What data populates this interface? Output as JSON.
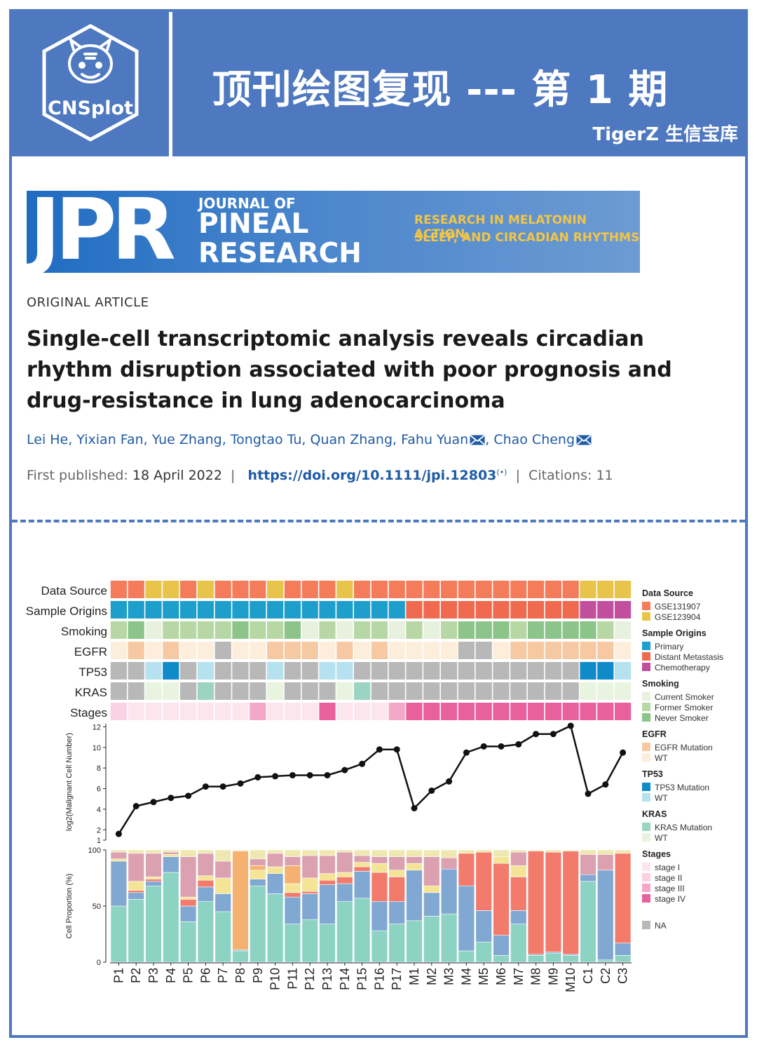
{
  "header": {
    "logo_label": "CNSplot",
    "title": "顶刊绘图复现 --- 第 1 期",
    "subtitle": "TigerZ 生信宝库"
  },
  "journal_banner": {
    "abbrev": "JPR",
    "journal_of": "JOURNAL OF",
    "pineal": "PINEAL",
    "research": "RESEARCH",
    "tagline1": "RESEARCH IN MELATONIN ACTION,",
    "tagline2": "SLEEP, AND CIRCADIAN RHYTHMS"
  },
  "article": {
    "type": "ORIGINAL ARTICLE",
    "title": "Single-cell transcriptomic analysis reveals circadian rhythm disruption associated with poor prognosis and drug-resistance in lung adenocarcinoma",
    "authors": "Lei He, Yixian Fan, Yue Zhang, Tongtao Tu, Quan Zhang, Fahu Yuan",
    "last_author": "Chao Cheng",
    "first_published_label": "First published:",
    "first_published_date": "18 April 2022",
    "doi": "https://doi.org/10.1111/jpi.12803",
    "citations_label": "Citations:",
    "citations_value": "11"
  },
  "colors": {
    "brand": "#4e78bf",
    "GSE131907": "#f47c5b",
    "GSE123904": "#e8c44a",
    "Primary": "#1d9ecb",
    "Distant Metastasis": "#ef6a4f",
    "Chemotherapy": "#c24e9e",
    "Current Smoker": "#e7f1de",
    "Former Smoker": "#b7d8a5",
    "Never Smoker": "#8cc48a",
    "EGFR Mutation": "#f6c9a2",
    "EGFR WT": "#fdeedb",
    "TP53 Mutation": "#108bc9",
    "TP53 WT": "#b5e2ee",
    "KRAS Mutation": "#9cd4c4",
    "KRAS WT": "#e8f3e0",
    "stage I": "#fde5ee",
    "stage II": "#fbd2e1",
    "stage III": "#f4a8c8",
    "stage IV": "#e8609c",
    "NA": "#b8b8b8",
    "line": "#111111"
  },
  "chart_data": {
    "type": "annotated-line-and-stacked-bar",
    "samples": [
      "P1",
      "P2",
      "P3",
      "P4",
      "P5",
      "P6",
      "P7",
      "P8",
      "P9",
      "P10",
      "P11",
      "P12",
      "P13",
      "P14",
      "P15",
      "P16",
      "P17",
      "M1",
      "M2",
      "M3",
      "M4",
      "M5",
      "M6",
      "M7",
      "M8",
      "M9",
      "M10",
      "C1",
      "C2",
      "C3"
    ],
    "annotation_tracks": [
      {
        "name": "Data Source",
        "values": [
          "GSE131907",
          "GSE131907",
          "GSE123904",
          "GSE123904",
          "GSE131907",
          "GSE123904",
          "GSE131907",
          "GSE131907",
          "GSE131907",
          "GSE123904",
          "GSE131907",
          "GSE131907",
          "GSE131907",
          "GSE123904",
          "GSE131907",
          "GSE131907",
          "GSE131907",
          "GSE131907",
          "GSE131907",
          "GSE131907",
          "GSE131907",
          "GSE131907",
          "GSE131907",
          "GSE131907",
          "GSE131907",
          "GSE131907",
          "GSE131907",
          "GSE123904",
          "GSE123904",
          "GSE123904"
        ]
      },
      {
        "name": "Sample Origins",
        "values": [
          "Primary",
          "Primary",
          "Primary",
          "Primary",
          "Primary",
          "Primary",
          "Primary",
          "Primary",
          "Primary",
          "Primary",
          "Primary",
          "Primary",
          "Primary",
          "Primary",
          "Primary",
          "Primary",
          "Primary",
          "Distant Metastasis",
          "Distant Metastasis",
          "Distant Metastasis",
          "Distant Metastasis",
          "Distant Metastasis",
          "Distant Metastasis",
          "Distant Metastasis",
          "Distant Metastasis",
          "Distant Metastasis",
          "Distant Metastasis",
          "Chemotherapy",
          "Chemotherapy",
          "Chemotherapy"
        ]
      },
      {
        "name": "Smoking",
        "values": [
          "Former Smoker",
          "Never Smoker",
          "Current Smoker",
          "Former Smoker",
          "Former Smoker",
          "Former Smoker",
          "Former Smoker",
          "Never Smoker",
          "Former Smoker",
          "Former Smoker",
          "Never Smoker",
          "Current Smoker",
          "Former Smoker",
          "Current Smoker",
          "Former Smoker",
          "Former Smoker",
          "Current Smoker",
          "Former Smoker",
          "Current Smoker",
          "Former Smoker",
          "Never Smoker",
          "Never Smoker",
          "Never Smoker",
          "Former Smoker",
          "Never Smoker",
          "Never Smoker",
          "Never Smoker",
          "Never Smoker",
          "Former Smoker",
          "Current Smoker"
        ]
      },
      {
        "name": "EGFR",
        "values": [
          "WT",
          "EGFR Mutation",
          "WT",
          "EGFR Mutation",
          "WT",
          "WT",
          "NA",
          "WT",
          "WT",
          "EGFR Mutation",
          "EGFR Mutation",
          "EGFR Mutation",
          "WT",
          "EGFR Mutation",
          "WT",
          "EGFR Mutation",
          "WT",
          "WT",
          "WT",
          "WT",
          "NA",
          "NA",
          "WT",
          "EGFR Mutation",
          "EGFR Mutation",
          "EGFR Mutation",
          "EGFR Mutation",
          "EGFR Mutation",
          "EGFR Mutation",
          "WT"
        ]
      },
      {
        "name": "TP53",
        "values": [
          "NA",
          "NA",
          "WT",
          "TP53 Mutation",
          "NA",
          "WT",
          "NA",
          "NA",
          "NA",
          "WT",
          "NA",
          "NA",
          "WT",
          "WT",
          "NA",
          "NA",
          "NA",
          "NA",
          "NA",
          "NA",
          "NA",
          "NA",
          "NA",
          "NA",
          "NA",
          "NA",
          "NA",
          "TP53 Mutation",
          "TP53 Mutation",
          "WT"
        ]
      },
      {
        "name": "KRAS",
        "values": [
          "NA",
          "NA",
          "WT",
          "WT",
          "NA",
          "KRAS Mutation",
          "NA",
          "NA",
          "NA",
          "WT",
          "NA",
          "NA",
          "NA",
          "WT",
          "KRAS Mutation",
          "NA",
          "NA",
          "NA",
          "NA",
          "NA",
          "NA",
          "NA",
          "NA",
          "NA",
          "NA",
          "NA",
          "NA",
          "WT",
          "WT",
          "WT"
        ]
      },
      {
        "name": "Stages",
        "values": [
          "stage II",
          "stage I",
          "stage I",
          "stage I",
          "stage I",
          "stage I",
          "stage I",
          "stage I",
          "stage III",
          "stage I",
          "stage I",
          "stage I",
          "stage IV",
          "stage I",
          "stage I",
          "stage I",
          "stage III",
          "stage IV",
          "stage IV",
          "stage IV",
          "stage IV",
          "stage IV",
          "stage IV",
          "stage IV",
          "stage IV",
          "stage IV",
          "stage IV",
          "stage IV",
          "stage IV",
          "stage IV"
        ]
      }
    ],
    "line": {
      "ylabel": "log2(Malignant Cell Number)",
      "ylim": [
        1,
        12.3
      ],
      "yticks": [
        1,
        2,
        4,
        6,
        8,
        10,
        12
      ],
      "values": [
        1.6,
        4.3,
        4.7,
        5.1,
        5.3,
        6.2,
        6.2,
        6.5,
        7.1,
        7.2,
        7.3,
        7.3,
        7.3,
        7.8,
        8.4,
        9.8,
        9.8,
        4.1,
        5.8,
        6.7,
        9.5,
        10.1,
        10.1,
        10.3,
        11.3,
        11.3,
        12.1,
        5.5,
        6.4,
        9.5
      ]
    },
    "bar": {
      "ylabel": "Cell Proportion (%)",
      "ylim": [
        0,
        100
      ],
      "yticks": [
        0,
        50,
        100
      ],
      "series": [
        {
          "name": "teal",
          "color": "#8dd3c3",
          "values": [
            50,
            56,
            68,
            80,
            36,
            54,
            45,
            10,
            68,
            61,
            34,
            38,
            34,
            54,
            57,
            28,
            34,
            37,
            41,
            43,
            10,
            18,
            6,
            34,
            6,
            8,
            6,
            72,
            2,
            6
          ]
        },
        {
          "name": "blue",
          "color": "#80a8d3",
          "values": [
            40,
            6,
            4,
            14,
            14,
            13,
            16,
            1,
            6,
            18,
            24,
            23,
            35,
            16,
            24,
            26,
            20,
            45,
            21,
            40,
            58,
            28,
            18,
            12,
            1,
            1,
            1,
            6,
            80,
            11
          ]
        },
        {
          "name": "salmon",
          "color": "#f27b6b",
          "values": [
            0,
            2,
            2,
            0,
            6,
            6,
            0,
            0,
            0,
            0,
            4,
            2,
            4,
            6,
            4,
            26,
            22,
            0,
            0,
            0,
            29,
            52,
            64,
            30,
            92,
            89,
            92,
            0,
            0,
            80
          ]
        },
        {
          "name": "yellow",
          "color": "#f4e496",
          "values": [
            2,
            8,
            2,
            2,
            2,
            4,
            14,
            0,
            8,
            6,
            8,
            12,
            6,
            4,
            4,
            8,
            6,
            6,
            6,
            0,
            0,
            0,
            6,
            10,
            0,
            0,
            0,
            0,
            0,
            0
          ]
        },
        {
          "name": "orange",
          "color": "#f5b16f",
          "values": [
            0,
            0,
            0,
            0,
            0,
            0,
            0,
            88,
            4,
            0,
            16,
            0,
            0,
            0,
            0,
            0,
            0,
            0,
            0,
            0,
            0,
            0,
            0,
            0,
            0,
            0,
            0,
            0,
            0,
            0
          ]
        },
        {
          "name": "pink",
          "color": "#dca1b0",
          "values": [
            6,
            25,
            21,
            2,
            36,
            20,
            15,
            0,
            6,
            12,
            8,
            20,
            16,
            18,
            6,
            6,
            12,
            6,
            26,
            10,
            0,
            0,
            0,
            12,
            0,
            0,
            0,
            18,
            14,
            0
          ]
        },
        {
          "name": "other",
          "color": "#efe8b0",
          "values": [
            2,
            3,
            3,
            2,
            6,
            3,
            10,
            1,
            8,
            3,
            6,
            5,
            5,
            2,
            5,
            6,
            6,
            6,
            6,
            7,
            3,
            2,
            6,
            2,
            1,
            2,
            1,
            4,
            4,
            3
          ]
        }
      ]
    },
    "legend": [
      {
        "title": "Data Source",
        "entries": [
          "GSE131907",
          "GSE123904"
        ]
      },
      {
        "title": "Sample Origins",
        "entries": [
          "Primary",
          "Distant Metastasis",
          "Chemotherapy"
        ]
      },
      {
        "title": "Smoking",
        "entries": [
          "Current Smoker",
          "Former Smoker",
          "Never Smoker"
        ]
      },
      {
        "title": "EGFR",
        "entries": [
          "EGFR Mutation",
          "WT"
        ]
      },
      {
        "title": "TP53",
        "entries": [
          "TP53 Mutation",
          "WT"
        ]
      },
      {
        "title": "KRAS",
        "entries": [
          "KRAS Mutation",
          "WT"
        ]
      },
      {
        "title": "Stages",
        "entries": [
          "stage I",
          "stage II",
          "stage III",
          "stage IV"
        ]
      },
      {
        "title": "",
        "entries": [
          "NA"
        ]
      }
    ]
  }
}
